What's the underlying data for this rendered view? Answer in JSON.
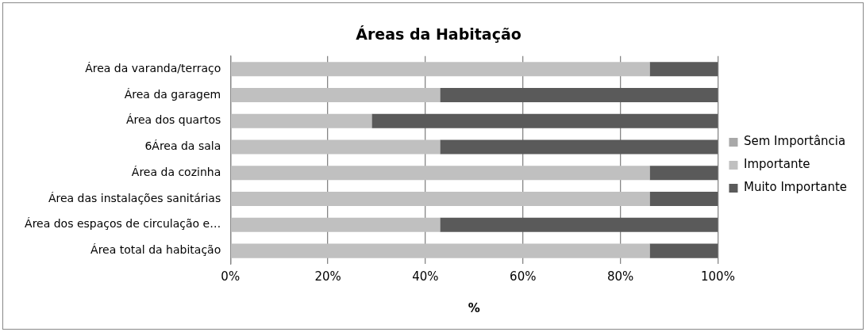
{
  "chart_data": {
    "type": "bar",
    "orientation": "horizontal",
    "stacked": true,
    "title": "Áreas da Habitação",
    "xlabel": "%",
    "categories": [
      "Área da varanda/terraço",
      "Área da garagem",
      "Área dos quartos",
      "6Área da sala",
      "Área da cozinha",
      "Área das instalações sanitárias",
      "Área dos espaços de circulação e…",
      "Área total da habitação"
    ],
    "series": [
      {
        "name": "Sem Importância",
        "color": "#a8a8a8",
        "values": [
          0,
          0,
          0,
          0,
          0,
          0,
          0,
          0
        ]
      },
      {
        "name": "Importante",
        "color": "#c0c0c0",
        "values": [
          86,
          43,
          29,
          43,
          86,
          86,
          43,
          86
        ]
      },
      {
        "name": "Muito Importante",
        "color": "#5a5a5a",
        "values": [
          14,
          57,
          71,
          57,
          14,
          14,
          57,
          14
        ]
      }
    ],
    "xlim": [
      0,
      100
    ],
    "xticks": [
      {
        "value": 0,
        "label": "0%"
      },
      {
        "value": 20,
        "label": "20%"
      },
      {
        "value": 40,
        "label": "40%"
      },
      {
        "value": 60,
        "label": "60%"
      },
      {
        "value": 80,
        "label": "80%"
      },
      {
        "value": 100,
        "label": "100%"
      }
    ],
    "grid": "x",
    "legend": "right"
  }
}
